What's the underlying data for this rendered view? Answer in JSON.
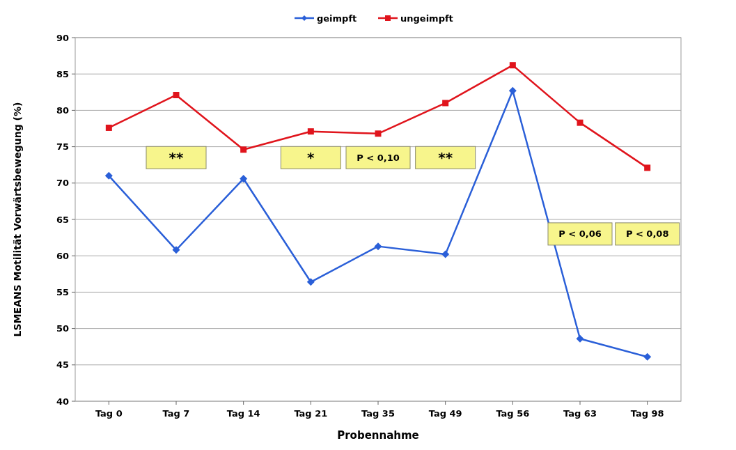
{
  "chart_data": {
    "type": "line",
    "xlabel": "Probennahme",
    "ylabel": "LSMEANS Motilität Vorwärtsbewegung (%)",
    "categories": [
      "Tag 0",
      "Tag 7",
      "Tag 14",
      "Tag 21",
      "Tag 35",
      "Tag 49",
      "Tag 56",
      "Tag 63",
      "Tag 98"
    ],
    "series": [
      {
        "name": "geimpft",
        "color": "#2a5fd8",
        "marker": "diamond",
        "values": [
          71.0,
          60.8,
          70.6,
          56.4,
          61.3,
          60.2,
          82.7,
          48.6,
          46.1
        ]
      },
      {
        "name": "ungeimpft",
        "color": "#e0141c",
        "marker": "square",
        "values": [
          77.6,
          82.1,
          74.6,
          77.1,
          76.8,
          81.0,
          86.2,
          78.3,
          72.1
        ]
      }
    ],
    "ylim": [
      40,
      90
    ],
    "yticks": [
      40,
      45,
      50,
      55,
      60,
      65,
      70,
      75,
      80,
      85,
      90
    ],
    "grid": "y",
    "legend": "top",
    "annotations": [
      "**",
      "*",
      "P < 0,10",
      "**",
      "P < 0,06",
      "P < 0,08"
    ]
  }
}
